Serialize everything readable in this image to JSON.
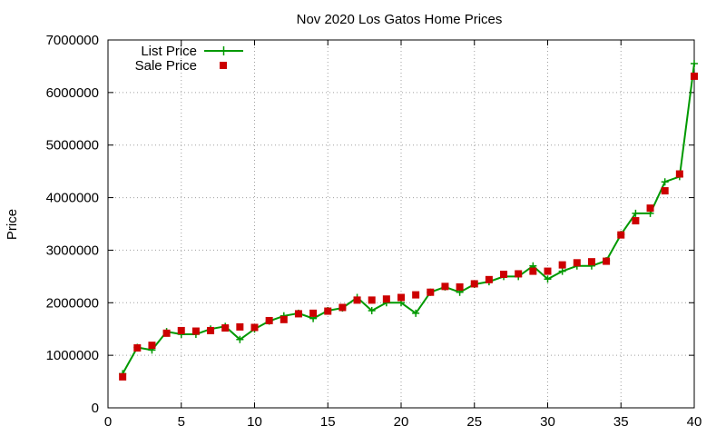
{
  "chart_data": {
    "type": "line",
    "title": "Nov 2020 Los Gatos Home Prices",
    "xlabel": "",
    "ylabel": "Price",
    "xlim": [
      0,
      40
    ],
    "ylim": [
      0,
      7000000
    ],
    "xticks": [
      0,
      5,
      10,
      15,
      20,
      25,
      30,
      35,
      40
    ],
    "yticks": [
      0,
      1000000,
      2000000,
      3000000,
      4000000,
      5000000,
      6000000,
      7000000
    ],
    "grid": true,
    "legend_position": "top-left",
    "x": [
      1,
      2,
      3,
      4,
      5,
      6,
      7,
      8,
      9,
      10,
      11,
      12,
      13,
      14,
      15,
      16,
      17,
      18,
      19,
      20,
      21,
      22,
      23,
      24,
      25,
      26,
      27,
      28,
      29,
      30,
      31,
      32,
      33,
      34,
      35,
      36,
      37,
      38,
      39,
      40
    ],
    "series": [
      {
        "name": "List Price",
        "style": "line-plus",
        "color": "#009900",
        "values": [
          650000,
          1150000,
          1100000,
          1450000,
          1400000,
          1400000,
          1500000,
          1550000,
          1300000,
          1500000,
          1650000,
          1750000,
          1800000,
          1700000,
          1850000,
          1900000,
          2100000,
          1850000,
          2000000,
          2000000,
          1800000,
          2200000,
          2300000,
          2200000,
          2350000,
          2400000,
          2500000,
          2500000,
          2700000,
          2450000,
          2600000,
          2700000,
          2700000,
          2800000,
          3300000,
          3700000,
          3700000,
          4300000,
          4400000,
          6550000
        ]
      },
      {
        "name": "Sale Price",
        "style": "square",
        "color": "#cc0000",
        "values": [
          590000,
          1140000,
          1190000,
          1420000,
          1470000,
          1460000,
          1470000,
          1520000,
          1540000,
          1530000,
          1660000,
          1680000,
          1790000,
          1800000,
          1840000,
          1910000,
          2050000,
          2050000,
          2070000,
          2100000,
          2150000,
          2200000,
          2310000,
          2300000,
          2360000,
          2440000,
          2540000,
          2550000,
          2600000,
          2600000,
          2720000,
          2760000,
          2780000,
          2790000,
          3290000,
          3560000,
          3800000,
          4130000,
          4450000,
          6310000
        ]
      }
    ]
  }
}
